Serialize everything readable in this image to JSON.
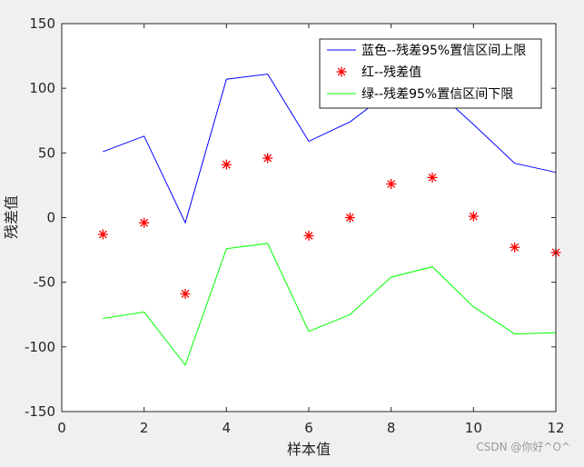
{
  "chart_data": {
    "type": "line",
    "x": [
      1,
      2,
      3,
      4,
      5,
      6,
      7,
      8,
      9,
      10,
      11,
      12
    ],
    "series": [
      {
        "name": "蓝色--残差95%置信区间上限",
        "kind": "line",
        "color": "#0000ff",
        "values": [
          51,
          63,
          -4,
          107,
          111,
          59,
          74,
          98,
          101,
          72,
          42,
          35
        ]
      },
      {
        "name": "红--残差值",
        "kind": "scatter",
        "marker": "*",
        "color": "#ff0000",
        "values": [
          -13,
          -4,
          -59,
          41,
          46,
          -14,
          0,
          26,
          31,
          1,
          -23,
          -27
        ]
      },
      {
        "name": "绿--残差95%置信区间下限",
        "kind": "line",
        "color": "#00ff00",
        "values": [
          -78,
          -73,
          -114,
          -24,
          -20,
          -88,
          -75,
          -46,
          -38,
          -69,
          -90,
          -89
        ]
      }
    ],
    "xlabel": "样本值",
    "ylabel": "残差值",
    "xlim": [
      0,
      12
    ],
    "ylim": [
      -150,
      150
    ],
    "xticks": [
      0,
      2,
      4,
      6,
      8,
      10,
      12
    ],
    "yticks": [
      -150,
      -100,
      -50,
      0,
      50,
      100,
      150
    ],
    "grid": false,
    "legend_position": "top-right"
  },
  "watermark": "CSDN @你好^O^"
}
